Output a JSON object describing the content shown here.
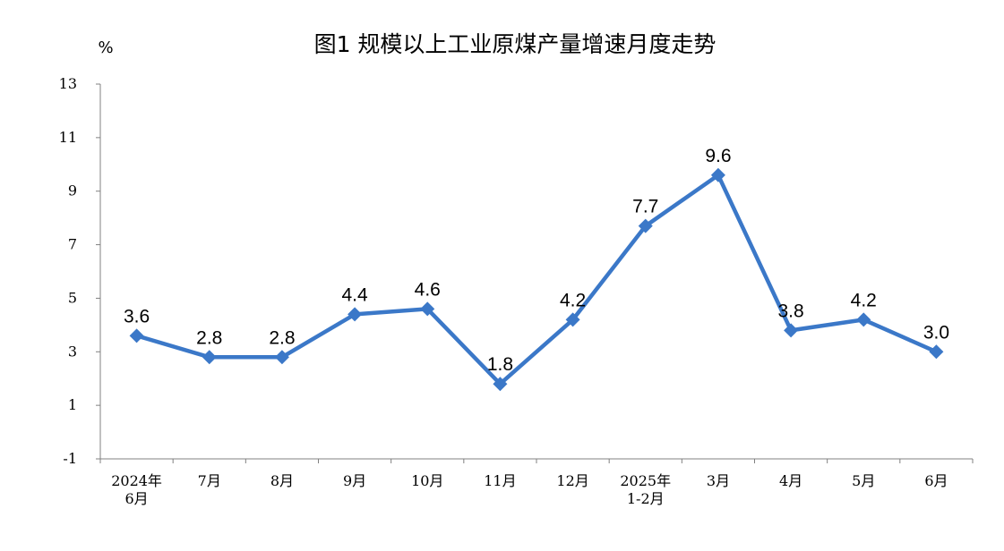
{
  "chart_data": {
    "type": "line",
    "title": "图1  规模以上工业原煤产量增速月度走势",
    "ylabel": "%",
    "xlabel": "",
    "ylim": [
      -1,
      13
    ],
    "yticks": [
      -1,
      1,
      3,
      5,
      7,
      9,
      11,
      13
    ],
    "categories": [
      "2024年\n6月",
      "7月",
      "8月",
      "9月",
      "10月",
      "11月",
      "12月",
      "2025年\n1-2月",
      "3月",
      "4月",
      "5月",
      "6月"
    ],
    "series": [
      {
        "values": [
          3.6,
          2.8,
          2.8,
          4.4,
          4.6,
          1.8,
          4.2,
          7.7,
          9.6,
          3.8,
          4.2,
          3.0
        ]
      }
    ],
    "data_labels": [
      "3.6",
      "2.8",
      "2.8",
      "4.4",
      "4.6",
      "1.8",
      "4.2",
      "7.7",
      "9.6",
      "3.8",
      "4.2",
      "3.0"
    ],
    "marker": "diamond",
    "grid": false,
    "legend": "none",
    "line_color": "#3b78c8"
  }
}
